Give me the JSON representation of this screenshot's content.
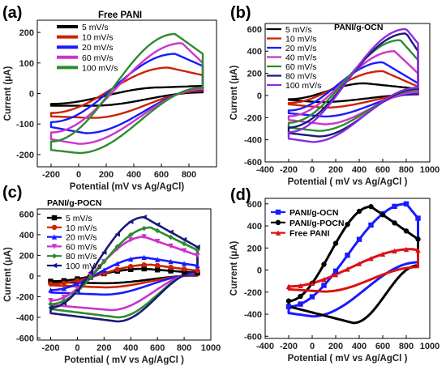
{
  "chart_data": [
    {
      "type": "line",
      "panel_label": "(a)",
      "title": "",
      "legend_title": "Free PANI",
      "legend_placement": "top-left",
      "xlabel": "Potential (mV vs Ag/AgCl)",
      "ylabel": "Current (μA)",
      "xlim": [
        -300,
        1000
      ],
      "ylim": [
        -240,
        240
      ],
      "xticks": [
        -200,
        0,
        200,
        400,
        600,
        800
      ],
      "yticks": [
        -200,
        -100,
        0,
        100,
        200
      ],
      "series": [
        {
          "name": "5 mV/s",
          "color": "#000000",
          "marker": "none",
          "cv": {
            "xmin": -200,
            "xmax": 900,
            "y_anodic_end": 25,
            "y_cathodic_start": -40,
            "peak_a": [
              600,
              20
            ],
            "peak_c": [
              100,
              -40
            ]
          }
        },
        {
          "name": "10 mV/s",
          "color": "#cc2200",
          "marker": "none",
          "cv": {
            "xmin": -200,
            "xmax": 900,
            "y_anodic_end": 60,
            "y_cathodic_start": -75,
            "peak_a": [
              650,
              85
            ],
            "peak_c": [
              100,
              -80
            ]
          }
        },
        {
          "name": "20 mV/s",
          "color": "#1a1aff",
          "marker": "none",
          "cv": {
            "xmin": -200,
            "xmax": 900,
            "y_anodic_end": 90,
            "y_cathodic_start": -110,
            "peak_a": [
              700,
              130
            ],
            "peak_c": [
              50,
              -130
            ]
          }
        },
        {
          "name": "60 mV/s",
          "color": "#cc33cc",
          "marker": "none",
          "cv": {
            "xmin": -200,
            "xmax": 900,
            "y_anodic_end": 100,
            "y_cathodic_start": -150,
            "peak_a": [
              750,
              165
            ],
            "peak_c": [
              0,
              -165
            ]
          }
        },
        {
          "name": "100 mV/s",
          "color": "#2e8b2e",
          "marker": "none",
          "cv": {
            "xmin": -200,
            "xmax": 900,
            "y_anodic_end": 130,
            "y_cathodic_start": -185,
            "peak_a": [
              700,
              195
            ],
            "peak_c": [
              0,
              -195
            ]
          }
        }
      ]
    },
    {
      "type": "line",
      "panel_label": "(b)",
      "title": "",
      "legend_title": "PANI/g-OCN",
      "legend_placement": "top-left",
      "xlabel": "Potential ( mV vs Ag/AgCl )",
      "ylabel": "Current (μA)",
      "xlim": [
        -400,
        1000
      ],
      "ylim": [
        -600,
        650
      ],
      "xticks": [
        -400,
        -200,
        0,
        200,
        400,
        600,
        800,
        1000
      ],
      "yticks": [
        -600,
        -400,
        -200,
        0,
        200,
        400,
        600
      ],
      "series": [
        {
          "name": "5 mV/s",
          "color": "#000000",
          "marker": "none",
          "cv": {
            "xmin": -200,
            "xmax": 900,
            "y_anodic_end": 60,
            "y_cathodic_start": -40,
            "peak_a": [
              450,
              110
            ],
            "peak_c": [
              50,
              -60
            ]
          }
        },
        {
          "name": "10 mV/s",
          "color": "#cc2200",
          "marker": "none",
          "cv": {
            "xmin": -200,
            "xmax": 900,
            "y_anodic_end": 80,
            "y_cathodic_start": -80,
            "peak_a": [
              600,
              220
            ],
            "peak_c": [
              100,
              -110
            ]
          }
        },
        {
          "name": "20 mV/s",
          "color": "#1a1aff",
          "marker": "none",
          "cv": {
            "xmin": -200,
            "xmax": 900,
            "y_anodic_end": 110,
            "y_cathodic_start": -160,
            "peak_a": [
              600,
              300
            ],
            "peak_c": [
              100,
              -190
            ]
          }
        },
        {
          "name": "40 mV/s",
          "color": "#cc33cc",
          "marker": "none",
          "cv": {
            "xmin": -200,
            "xmax": 900,
            "y_anodic_end": 200,
            "y_cathodic_start": -220,
            "peak_a": [
              700,
              400
            ],
            "peak_c": [
              100,
              -260
            ]
          }
        },
        {
          "name": "60 mV/s",
          "color": "#2e8b2e",
          "marker": "none",
          "cv": {
            "xmin": -200,
            "xmax": 900,
            "y_anodic_end": 320,
            "y_cathodic_start": -290,
            "peak_a": [
              750,
              500
            ],
            "peak_c": [
              50,
              -320
            ]
          }
        },
        {
          "name": "80 mV/s",
          "color": "#1a1a7a",
          "marker": "none",
          "cv": {
            "xmin": -200,
            "xmax": 900,
            "y_anodic_end": 400,
            "y_cathodic_start": -340,
            "peak_a": [
              800,
              560
            ],
            "peak_c": [
              50,
              -370
            ]
          }
        },
        {
          "name": "100 mV/s",
          "color": "#8a2be2",
          "marker": "none",
          "cv": {
            "xmin": -200,
            "xmax": 900,
            "y_anodic_end": 470,
            "y_cathodic_start": -390,
            "peak_a": [
              800,
              600
            ],
            "peak_c": [
              0,
              -420
            ]
          }
        }
      ]
    },
    {
      "type": "line",
      "panel_label": "(c)",
      "title": "",
      "legend_title": "PANI/g-POCN",
      "legend_placement": "top-left",
      "xlabel": "Potential ( mV vs Ag/AgCl )",
      "ylabel": "Current (μA)",
      "xlim": [
        -300,
        1000
      ],
      "ylim": [
        -620,
        650
      ],
      "xticks": [
        -200,
        0,
        200,
        400,
        600,
        800,
        1000
      ],
      "yticks": [
        -600,
        -400,
        -200,
        0,
        200,
        400,
        600
      ],
      "series": [
        {
          "name": "5 mV/s",
          "color": "#000000",
          "marker": "square",
          "cv": {
            "xmin": -200,
            "xmax": 900,
            "y_anodic_end": 30,
            "y_cathodic_start": -60,
            "peak_a": [
              500,
              70
            ],
            "peak_c": [
              200,
              -70
            ]
          }
        },
        {
          "name": "10 mV/s",
          "color": "#cc2200",
          "marker": "circle",
          "cv": {
            "xmin": -200,
            "xmax": 900,
            "y_anodic_end": 50,
            "y_cathodic_start": -90,
            "peak_a": [
              550,
              110
            ],
            "peak_c": [
              200,
              -110
            ]
          }
        },
        {
          "name": "20 mV/s",
          "color": "#1a1aff",
          "marker": "triangle-up",
          "cv": {
            "xmin": -200,
            "xmax": 900,
            "y_anodic_end": 100,
            "y_cathodic_start": -160,
            "peak_a": [
              500,
              180
            ],
            "peak_c": [
              200,
              -180
            ]
          }
        },
        {
          "name": "60 mV/s",
          "color": "#cc33cc",
          "marker": "triangle-down",
          "cv": {
            "xmin": -200,
            "xmax": 900,
            "y_anodic_end": 200,
            "y_cathodic_start": -280,
            "peak_a": [
              500,
              380
            ],
            "peak_c": [
              250,
              -330
            ]
          }
        },
        {
          "name": "80 mV/s",
          "color": "#2e8b2e",
          "marker": "diamond",
          "cv": {
            "xmin": -200,
            "xmax": 900,
            "y_anodic_end": 250,
            "y_cathodic_start": -320,
            "peak_a": [
              550,
              470
            ],
            "peak_c": [
              300,
              -400
            ]
          }
        },
        {
          "name": "100 mV/s",
          "color": "#1a1a7a",
          "marker": "triangle-left",
          "cv": {
            "xmin": -200,
            "xmax": 900,
            "y_anodic_end": 280,
            "y_cathodic_start": -360,
            "peak_a": [
              500,
              570
            ],
            "peak_c": [
              300,
              -440
            ]
          }
        }
      ]
    },
    {
      "type": "line",
      "panel_label": "(d)",
      "title": "",
      "legend_title": "",
      "legend_placement": "top-left",
      "xlabel": "Potential ( mV vs Ag/AgCl )",
      "ylabel": "Current (μA)",
      "xlim": [
        -400,
        1000
      ],
      "ylim": [
        -620,
        650
      ],
      "xticks": [
        -400,
        -200,
        0,
        200,
        400,
        600,
        800,
        1000
      ],
      "yticks": [
        -600,
        -400,
        -200,
        0,
        200,
        400,
        600
      ],
      "series": [
        {
          "name": "PANI/g-OCN",
          "color": "#1a1aff",
          "marker": "square",
          "cv": {
            "xmin": -200,
            "xmax": 900,
            "y_anodic_end": 470,
            "y_cathodic_start": -390,
            "peak_a": [
              800,
              600
            ],
            "peak_c": [
              0,
              -420
            ]
          }
        },
        {
          "name": "PANI/g-POCN",
          "color": "#000000",
          "marker": "circle",
          "cv": {
            "xmin": -200,
            "xmax": 900,
            "y_anodic_end": 280,
            "y_cathodic_start": -330,
            "peak_a": [
              500,
              575
            ],
            "peak_c": [
              350,
              -480
            ]
          }
        },
        {
          "name": "Free PANI",
          "color": "#dd1111",
          "marker": "triangle-up",
          "cv": {
            "xmin": -200,
            "xmax": 900,
            "y_anodic_end": 180,
            "y_cathodic_start": -175,
            "peak_a": [
              850,
              190
            ],
            "peak_c": [
              100,
              -195
            ]
          }
        }
      ]
    }
  ]
}
